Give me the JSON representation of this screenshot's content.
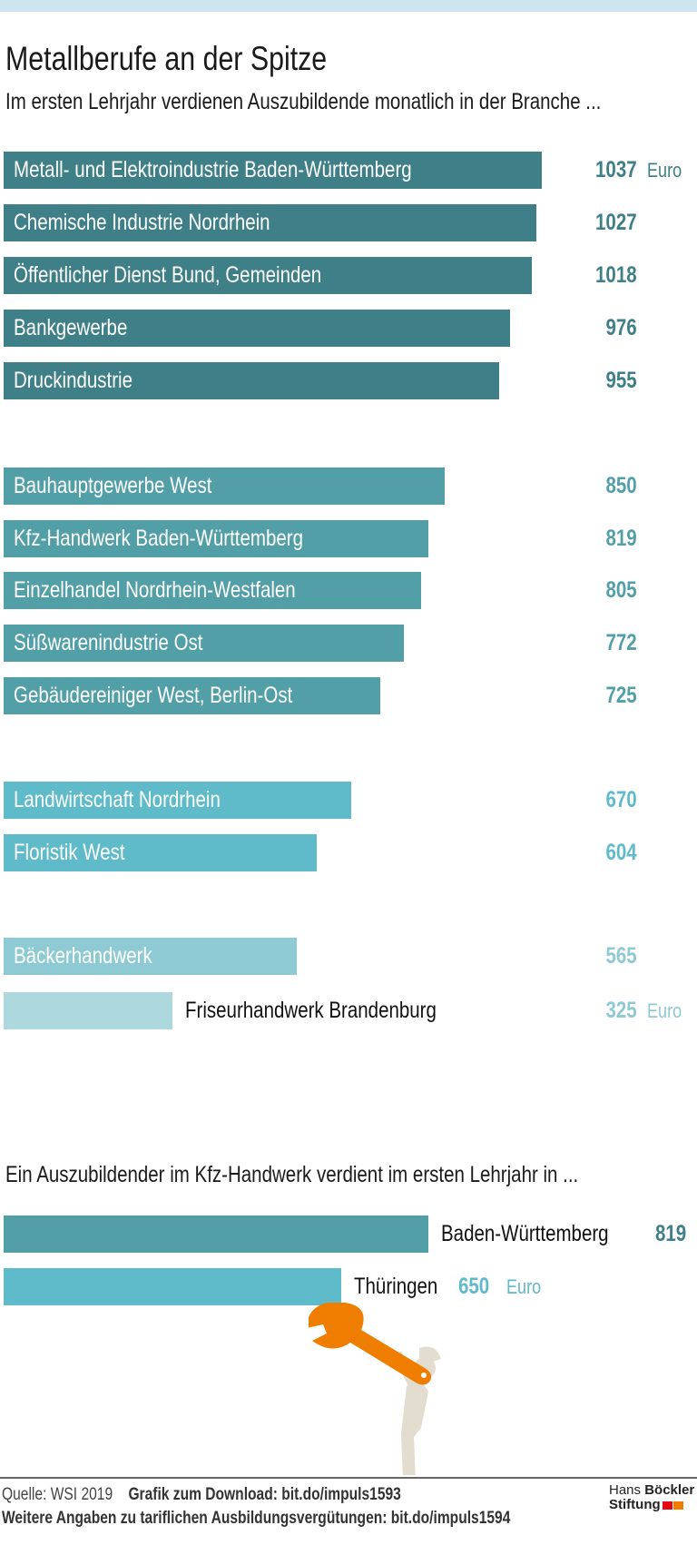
{
  "title": "Metallberufe an der Spitze",
  "subtitle": "Im ersten Lehrjahr verdienen Auszubildende monatlich in der Branche ...",
  "unit": "Euro",
  "colors": {
    "dark": "#3f7f87",
    "mid": "#529fa8",
    "light": "#5fbac9",
    "pale": "#8ecad3",
    "palest": "#acd8de",
    "accent": "#ef7d00",
    "figure": "#e3ddcf",
    "band": "#cde5ee"
  },
  "chart_data": [
    {
      "type": "bar",
      "orientation": "horizontal",
      "title": "Metallberufe an der Spitze",
      "subtitle": "Im ersten Lehrjahr verdienen Auszubildende monatlich in der Branche ...",
      "unit": "Euro",
      "xlim": [
        0,
        1037
      ],
      "categories": [
        "Metall- und Elektroindustrie Baden-Württemberg",
        "Chemische Industrie Nordrhein",
        "Öffentlicher Dienst Bund, Gemeinden",
        "Bankgewerbe",
        "Druckindustrie",
        "Bauhauptgewerbe West",
        "Kfz-Handwerk Baden-Württemberg",
        "Einzelhandel Nordrhein-Westfalen",
        "Süßwarenindustrie Ost",
        "Gebäudereiniger West, Berlin-Ost",
        "Landwirtschaft Nordrhein",
        "Floristik West",
        "Bäckerhandwerk",
        "Friseurhandwerk Brandenburg"
      ],
      "values": [
        1037,
        1027,
        1018,
        976,
        955,
        850,
        819,
        805,
        772,
        725,
        670,
        604,
        565,
        325
      ],
      "groups": [
        0,
        0,
        0,
        0,
        0,
        1,
        1,
        1,
        1,
        1,
        2,
        2,
        3,
        4
      ]
    },
    {
      "type": "bar",
      "orientation": "horizontal",
      "title": "Ein Auszubildender im Kfz-Handwerk verdient im ersten Lehrjahr in ...",
      "unit": "Euro",
      "categories": [
        "Baden-Württemberg",
        "Thüringen"
      ],
      "values": [
        819,
        650
      ]
    }
  ],
  "footer": {
    "source": "Quelle: WSI 2019",
    "download": "Grafik zum Download: bit.do/impuls1593",
    "more": "Weitere Angaben zu tariflichen Ausbildungsvergütungen: bit.do/impuls1594",
    "logo_line1_a": "Hans",
    "logo_line1_b": "Böckler",
    "logo_line2": "Stiftung"
  }
}
